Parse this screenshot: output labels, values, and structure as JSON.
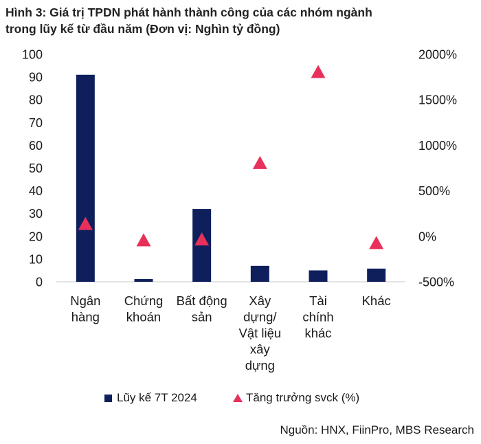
{
  "title": {
    "line1": "Hình 3: Giá trị TPDN phát hành thành công của các nhóm ngành",
    "line2": "trong lũy kế từ đầu năm (Đơn vị: Nghìn tỷ đồng)"
  },
  "chart_data": {
    "type": "bar+scatter",
    "categories": [
      [
        "Ngân",
        "hàng"
      ],
      [
        "Chứng",
        "khoán"
      ],
      [
        "Bất động",
        "sản"
      ],
      [
        "Xây",
        "dựng/",
        "Vật liệu",
        "xây",
        "dựng"
      ],
      [
        "Tài",
        "chính",
        "khác"
      ],
      [
        "Khác"
      ]
    ],
    "series": [
      {
        "name": "Lũy kế 7T 2024",
        "type": "bar",
        "axis": "left",
        "color": "#0f1f5c",
        "values": [
          91,
          1.2,
          32,
          7,
          5,
          5.8
        ]
      },
      {
        "name": "Tăng trưởng svck (%)",
        "type": "scatter",
        "marker": "triangle",
        "axis": "right",
        "color": "#e8315a",
        "values": [
          130,
          -50,
          -40,
          800,
          1800,
          -80
        ]
      }
    ],
    "y_left": {
      "min": 0,
      "max": 100,
      "step": 10,
      "tick_labels": [
        "0",
        "10",
        "20",
        "30",
        "40",
        "50",
        "60",
        "70",
        "80",
        "90",
        "100"
      ]
    },
    "y_right": {
      "min": -500,
      "max": 2000,
      "step": 500,
      "tick_labels": [
        "-500%",
        "0%",
        "500%",
        "1000%",
        "1500%",
        "2000%"
      ]
    },
    "legend": [
      {
        "label": "Lũy kế 7T 2024",
        "marker": "square"
      },
      {
        "label": "Tăng trưởng svck (%)",
        "marker": "triangle"
      }
    ],
    "legend_position": "bottom",
    "grid": false
  },
  "source": "Nguồn: HNX, FiinPro, MBS Research"
}
